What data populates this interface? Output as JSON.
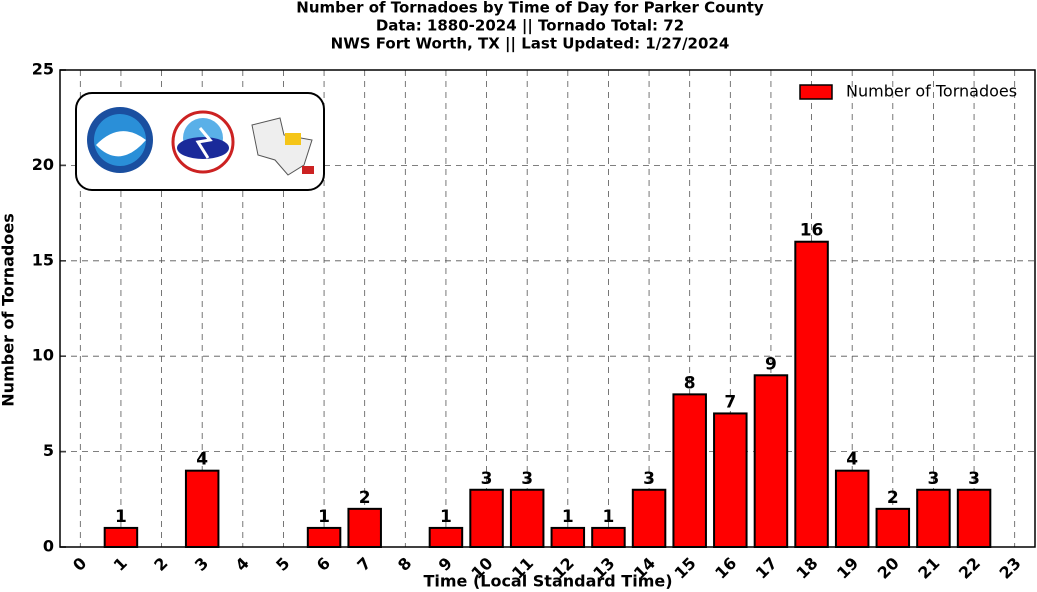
{
  "chart_data": {
    "type": "bar",
    "title": "Number of Tornadoes by Time of Day for Parker County",
    "subtitle": "Data: 1880-2024 || Tornado Total: 72",
    "subtitle2": "NWS Fort Worth, TX || Last Updated: 1/27/2024",
    "xlabel": "Time (Local Standard Time)",
    "ylabel": "Number of Tornadoes",
    "categories": [
      "0",
      "1",
      "2",
      "3",
      "4",
      "5",
      "6",
      "7",
      "8",
      "9",
      "10",
      "11",
      "12",
      "13",
      "14",
      "15",
      "16",
      "17",
      "18",
      "19",
      "20",
      "21",
      "22",
      "23"
    ],
    "series": [
      {
        "name": "Number of Tornadoes",
        "color": "#ff0000",
        "values": [
          0,
          1,
          0,
          4,
          0,
          0,
          1,
          2,
          0,
          1,
          3,
          3,
          1,
          1,
          3,
          8,
          7,
          9,
          16,
          4,
          2,
          3,
          3,
          0
        ]
      }
    ],
    "ylim": [
      0,
      25
    ],
    "yticks": [
      0,
      5,
      10,
      15,
      20,
      25
    ],
    "grid": true,
    "legend": "upper right"
  }
}
